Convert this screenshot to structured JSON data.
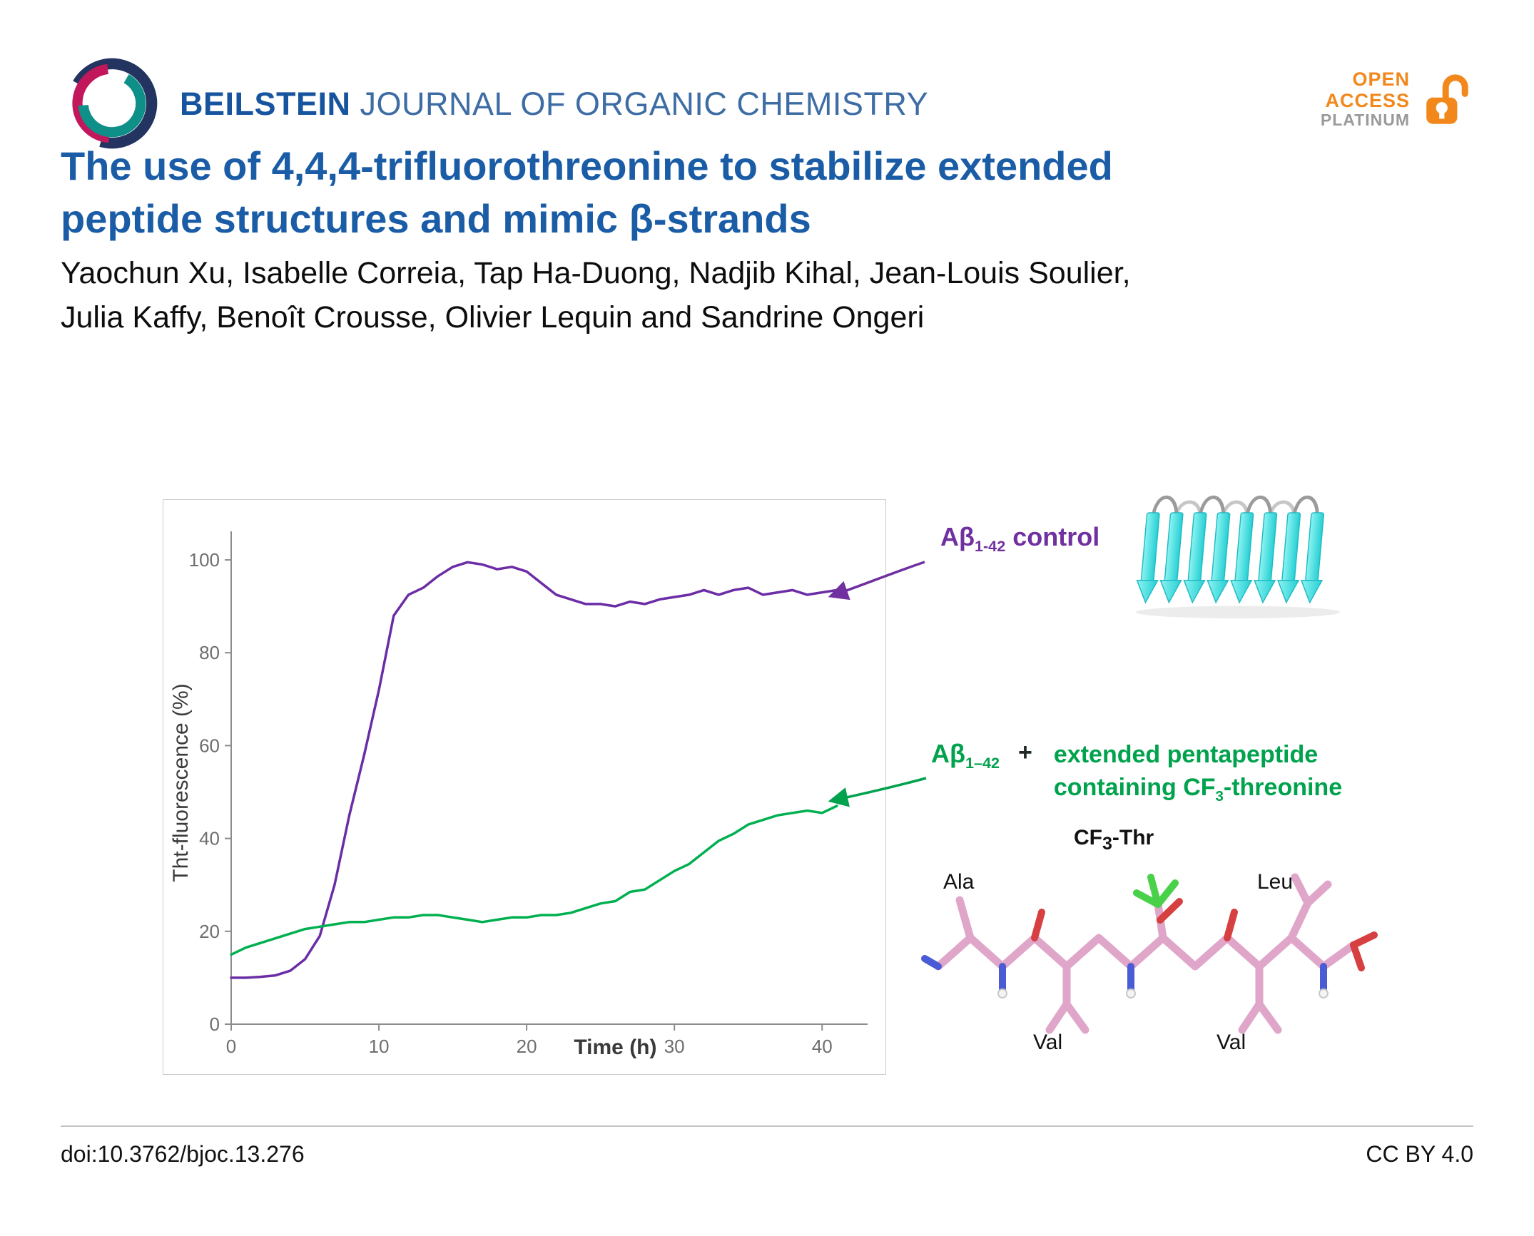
{
  "header": {
    "journal_bold": "BEILSTEIN",
    "journal_rest": "JOURNAL OF ORGANIC CHEMISTRY",
    "open_access": {
      "open": "OPEN",
      "access": "ACCESS",
      "platinum": "PLATINUM"
    },
    "accent_orange": "#f2881c",
    "brand_blue": "#17549f"
  },
  "title": {
    "line1": "The use of 4,4,4-trifluorothreonine to stabilize extended",
    "line2": "peptide structures and mimic β-strands"
  },
  "authors": {
    "line1": "Yaochun Xu, Isabelle Correia, Tap Ha-Duong, Nadjib Kihal, Jean-Louis Soulier,",
    "line2": "Julia Kaffy, Benoît Crousse, Olivier Lequin and Sandrine Ongeri"
  },
  "figure": {
    "control_label": {
      "prefix": "Aβ",
      "subscript": "1-42",
      "suffix": "control"
    },
    "treated_label": {
      "prefix": "Aβ",
      "subscript": "1–42",
      "plus": "+",
      "line1": "extended pentapeptide",
      "line2_a": "containing CF",
      "line2_sub": "3",
      "line2_b": "-threonine"
    },
    "molecule_labels": {
      "ala": "Ala",
      "cf3_a": "CF",
      "cf3_sub": "3",
      "cf3_b": "-Thr",
      "leu": "Leu",
      "val_left": "Val",
      "val_right": "Val"
    }
  },
  "chart_data": {
    "type": "line",
    "title": "",
    "xlabel": "Time (h)",
    "ylabel": "Tht-fluorescence (%)",
    "xlim": [
      0,
      42.5
    ],
    "ylim": [
      0,
      104
    ],
    "xticks": [
      0,
      10,
      20,
      30,
      40
    ],
    "yticks": [
      0,
      20,
      40,
      60,
      80,
      100
    ],
    "grid": false,
    "legend_position": "outside-right-annotations",
    "series": [
      {
        "id": "control",
        "name": "Aβ1-42 control",
        "color": "#6b2da5",
        "x": [
          0,
          1,
          2,
          3,
          4,
          5,
          6,
          7,
          8,
          9,
          10,
          11,
          12,
          13,
          14,
          15,
          16,
          17,
          18,
          19,
          20,
          21,
          22,
          23,
          24,
          25,
          26,
          27,
          28,
          29,
          30,
          31,
          32,
          33,
          34,
          35,
          36,
          37,
          38,
          39,
          40,
          41
        ],
        "y": [
          10,
          10,
          10.2,
          10.5,
          11.5,
          14,
          19,
          30,
          45,
          58,
          72,
          88,
          92.5,
          94,
          96.5,
          98.5,
          99.5,
          99,
          98,
          98.5,
          97.5,
          95,
          92.5,
          91.5,
          90.5,
          90.5,
          90,
          91,
          90.5,
          91.5,
          92,
          92.5,
          93.5,
          92.5,
          93.5,
          94,
          92.5,
          93,
          93.5,
          92.5,
          93,
          93.5
        ]
      },
      {
        "id": "pentapeptide",
        "name": "Aβ1-42 + extended pentapeptide containing CF3-threonine",
        "color": "#00b050",
        "x": [
          0,
          1,
          2,
          3,
          4,
          5,
          6,
          7,
          8,
          9,
          10,
          11,
          12,
          13,
          14,
          15,
          16,
          17,
          18,
          19,
          20,
          21,
          22,
          23,
          24,
          25,
          26,
          27,
          28,
          29,
          30,
          31,
          32,
          33,
          34,
          35,
          36,
          37,
          38,
          39,
          40,
          41
        ],
        "y": [
          15,
          16.5,
          17.5,
          18.5,
          19.5,
          20.5,
          21,
          21.5,
          22,
          22,
          22.5,
          23,
          23,
          23.5,
          23.5,
          23,
          22.5,
          22,
          22.5,
          23,
          23,
          23.5,
          23.5,
          24,
          25,
          26,
          26.5,
          28.5,
          29,
          31,
          33,
          34.5,
          37,
          39.5,
          41,
          43,
          44,
          45,
          45.5,
          46,
          45.5,
          47
        ]
      }
    ]
  },
  "footer": {
    "doi": "doi:10.3762/bjoc.13.276",
    "license": "CC BY 4.0"
  }
}
